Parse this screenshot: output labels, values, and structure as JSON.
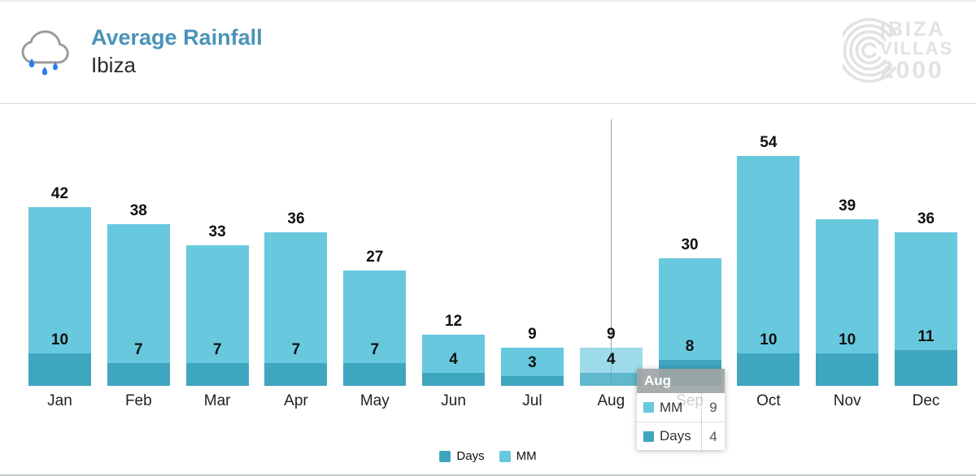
{
  "header": {
    "title": "Average Rainfall",
    "subtitle": "Ibiza",
    "icon": "rain-cloud-icon",
    "title_color": "#4a93b8",
    "raindrop_color": "#2a7fe8",
    "cloud_outline_color": "#9b9b9b"
  },
  "logo": {
    "line1": "IBIZA",
    "line2": "VILLAS",
    "line3": "2000",
    "color": "#e2e2e2",
    "mark": "concentric-arcs"
  },
  "chart_data": {
    "type": "bar",
    "title": "Average Rainfall",
    "subtitle": "Ibiza",
    "categories": [
      "Jan",
      "Feb",
      "Mar",
      "Apr",
      "May",
      "Jun",
      "Jul",
      "Aug",
      "Sep",
      "Oct",
      "Nov",
      "Dec"
    ],
    "series": [
      {
        "name": "MM",
        "color": "#68c8de",
        "values": [
          42,
          38,
          33,
          36,
          27,
          12,
          9,
          9,
          30,
          54,
          39,
          36
        ]
      },
      {
        "name": "Days",
        "color": "#3fa6c0",
        "values": [
          10,
          7,
          7,
          7,
          7,
          4,
          3,
          4,
          8,
          10,
          10,
          11
        ]
      }
    ],
    "layout": "overlaid bars from common baseline, Days drawn in front of MM",
    "value_labels": true,
    "grid": false,
    "legend_position": "bottom-center",
    "hovered_category": "Aug",
    "ylim_mm": [
      0,
      62
    ],
    "ylim_days": [
      0,
      83
    ]
  },
  "legend": {
    "items": [
      {
        "label": "Days",
        "color": "#3fa6c0"
      },
      {
        "label": "MM",
        "color": "#68c8de"
      }
    ]
  },
  "tooltip": {
    "title": "Aug",
    "rows": [
      {
        "label": "MM",
        "value": "9",
        "color": "#68c8de"
      },
      {
        "label": "Days",
        "value": "4",
        "color": "#3fa6c0"
      }
    ]
  }
}
